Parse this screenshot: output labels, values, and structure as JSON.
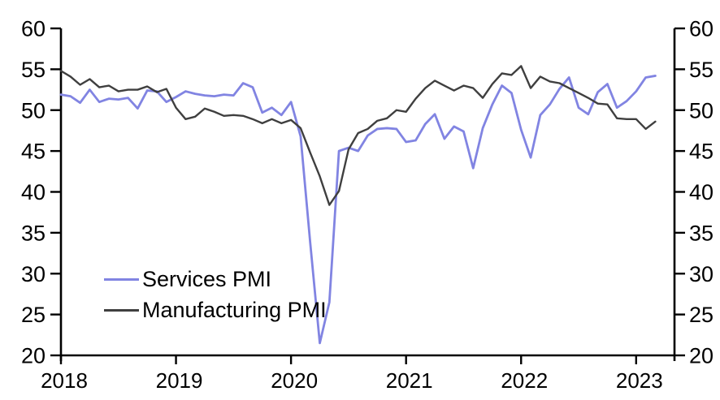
{
  "chart_data": {
    "type": "line",
    "title": "",
    "frequency": "monthly",
    "first_month": "2018-01",
    "last_month": "2023-03",
    "x_tick_labels": [
      "2018",
      "2019",
      "2020",
      "2021",
      "2022",
      "2023"
    ],
    "x_months_per_tick": 12,
    "x_domain_months": [
      0,
      64
    ],
    "ylim": [
      20,
      60
    ],
    "y_ticks": [
      60,
      55,
      50,
      45,
      40,
      35,
      30,
      25,
      20
    ],
    "y_axis_sides": "both",
    "grid": false,
    "axis_color": "#000000",
    "legend_position": "lower-left",
    "series": [
      {
        "name": "Services PMI",
        "color": "#8184E2",
        "values": [
          51.9,
          51.7,
          50.9,
          52.5,
          51.0,
          51.4,
          51.3,
          51.5,
          50.2,
          52.4,
          52.3,
          51.0,
          51.6,
          52.3,
          52.0,
          51.8,
          51.7,
          51.9,
          51.8,
          53.3,
          52.8,
          49.7,
          50.3,
          49.4,
          51.0,
          46.8,
          33.8,
          21.5,
          26.5,
          45.0,
          45.4,
          45.0,
          46.9,
          47.7,
          47.8,
          47.7,
          46.1,
          46.3,
          48.3,
          49.5,
          46.5,
          48.0,
          47.4,
          42.9,
          47.8,
          50.7,
          53.0,
          52.1,
          47.6,
          44.2,
          49.4,
          50.7,
          52.6,
          54.0,
          50.3,
          49.5,
          52.2,
          53.2,
          50.3,
          51.1,
          52.3,
          54.0,
          54.2
        ]
      },
      {
        "name": "Manufacturing PMI",
        "color": "#3F3F3F",
        "values": [
          54.8,
          54.1,
          53.1,
          53.8,
          52.8,
          53.0,
          52.3,
          52.5,
          52.5,
          52.9,
          52.2,
          52.6,
          50.3,
          48.9,
          49.2,
          50.2,
          49.8,
          49.3,
          49.4,
          49.3,
          48.9,
          48.4,
          48.9,
          48.4,
          48.8,
          47.8,
          44.8,
          41.9,
          38.4,
          40.1,
          45.2,
          47.2,
          47.7,
          48.7,
          49.0,
          50.0,
          49.8,
          51.4,
          52.7,
          53.6,
          53.0,
          52.4,
          53.0,
          52.7,
          51.5,
          53.2,
          54.5,
          54.3,
          55.4,
          52.7,
          54.1,
          53.5,
          53.3,
          52.7,
          52.1,
          51.5,
          50.8,
          50.7,
          49.0,
          48.9,
          48.9,
          47.7,
          48.6
        ]
      }
    ]
  }
}
